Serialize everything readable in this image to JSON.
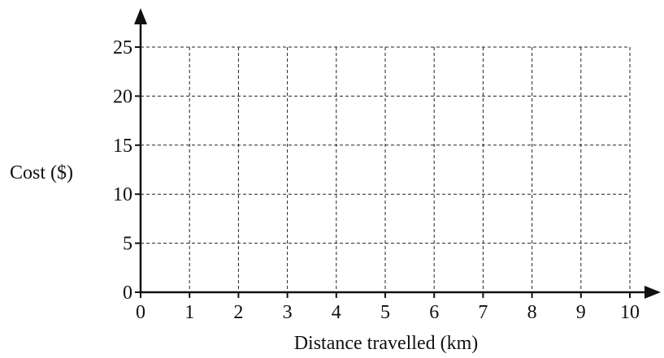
{
  "chart_data": {
    "type": "line",
    "title": "",
    "xlabel": "Distance travelled (km)",
    "ylabel": "Cost ($)",
    "xlim": [
      0,
      10
    ],
    "ylim": [
      0,
      25
    ],
    "x_ticks": [
      0,
      1,
      2,
      3,
      4,
      5,
      6,
      7,
      8,
      9,
      10
    ],
    "y_ticks": [
      0,
      5,
      10,
      15,
      20,
      25
    ],
    "grid": true,
    "grid_style": "dashed",
    "series": []
  }
}
